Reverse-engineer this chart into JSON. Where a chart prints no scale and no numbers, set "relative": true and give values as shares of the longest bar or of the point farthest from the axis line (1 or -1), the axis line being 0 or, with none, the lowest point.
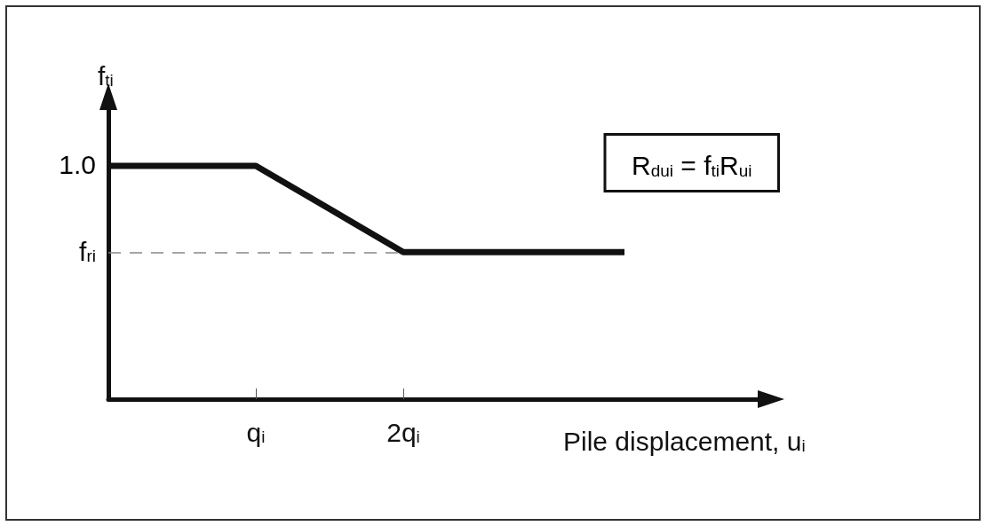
{
  "chart_data": {
    "type": "line",
    "xlabel": "Pile displacement, u$_{i}$",
    "ylabel": "f$_{ti}$",
    "relative": true,
    "categories": [
      null,
      null,
      "q$_{i}$",
      null,
      "2q$_{i}$",
      null,
      null,
      null,
      null,
      null
    ],
    "series": [
      {
        "color": "#111111",
        "values": [
          1,
          1,
          1,
          0.815,
          0.63,
          0.63,
          0.63,
          0.63,
          null,
          null
        ]
      }
    ],
    "ref_lines": [
      {
        "axis": "y",
        "value": 0.63,
        "color": "#888888",
        "line_style": "dashed"
      }
    ],
    "annotations": [
      "R$_{dui}$ = f$_{ti}$R$_{ui}$",
      "1.0",
      "f$_{ri}$"
    ],
    "grid": false,
    "marker": "none",
    "line_style": "solid"
  }
}
